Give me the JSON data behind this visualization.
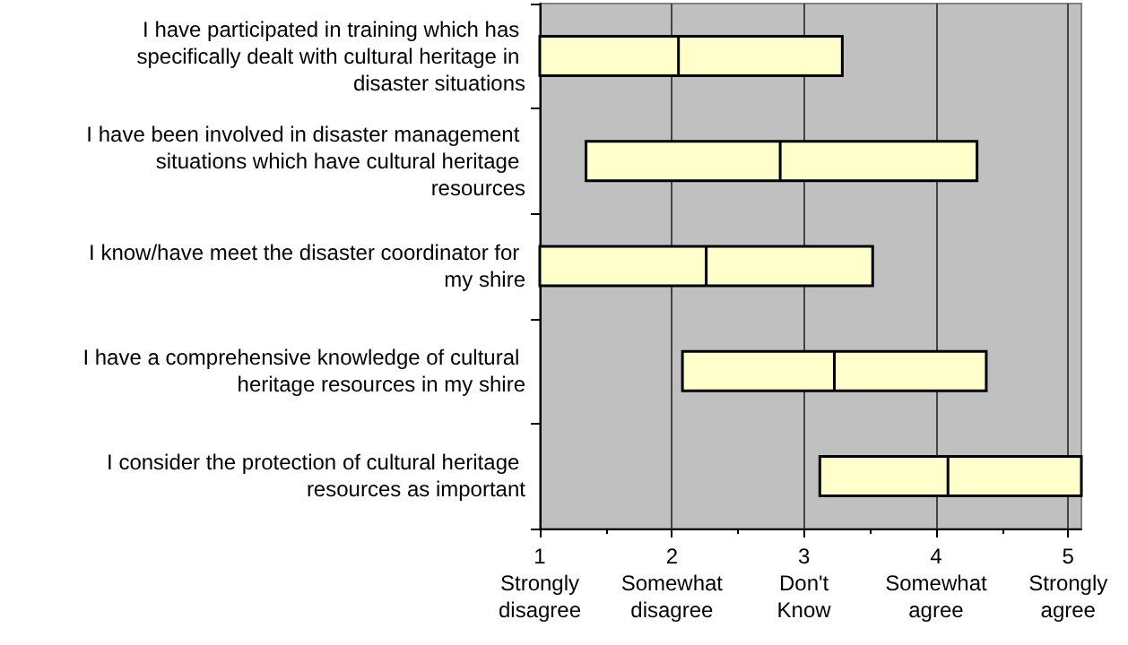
{
  "chart_data": {
    "type": "box",
    "orientation": "horizontal",
    "categories": [
      "I have participated in training which has specifically dealt with cultural heritage in disaster situations",
      "I have been involved in disaster management situations which have cultural heritage resources",
      "I know/have meet the disaster coordinator for my shire",
      "I have a comprehensive knowledge of cultural heritage resources in my shire",
      "I consider the protection of cultural heritage resources as important"
    ],
    "series": [
      {
        "color": "#ffffcc",
        "boxes": [
          {
            "low": 1.0,
            "q1": 1.0,
            "median": 2.05,
            "q3": 3.29,
            "high": 3.29
          },
          {
            "low": 1.35,
            "q1": 1.35,
            "median": 2.82,
            "q3": 4.31,
            "high": 4.31
          },
          {
            "low": 1.0,
            "q1": 1.0,
            "median": 2.26,
            "q3": 3.52,
            "high": 3.52
          },
          {
            "low": 2.08,
            "q1": 2.08,
            "median": 3.23,
            "q3": 4.38,
            "high": 4.38
          },
          {
            "low": 3.12,
            "q1": 3.12,
            "median": 4.09,
            "q3": 5.1,
            "high": 5.1
          }
        ]
      }
    ],
    "xlim": [
      1,
      5.1
    ],
    "xticks": [
      {
        "value": 1,
        "label": "1\nStrongly\ndisagree"
      },
      {
        "value": 2,
        "label": "2\nSomewhat\ndisagree"
      },
      {
        "value": 3,
        "label": "3\nDon't\nKnow"
      },
      {
        "value": 4,
        "label": "4\nSomewhat\nagree"
      },
      {
        "value": 5,
        "label": "5\nStrongly\nagree"
      }
    ],
    "grid": "x"
  }
}
